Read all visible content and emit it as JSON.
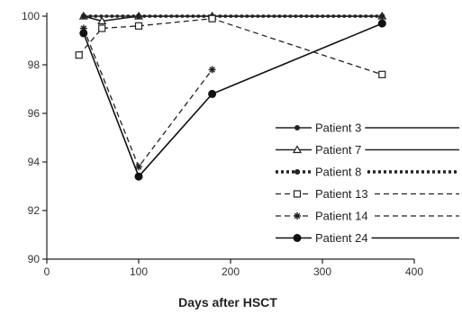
{
  "chart_data": {
    "type": "line",
    "title": "",
    "xlabel": "Days after HSCT",
    "ylabel": "",
    "xlim": [
      0,
      400
    ],
    "ylim": [
      90,
      100
    ],
    "x_ticks": [
      "0",
      "100",
      "200",
      "300",
      "400"
    ],
    "y_ticks": [
      "90",
      "92",
      "94",
      "96",
      "98",
      "100"
    ],
    "grid": false,
    "legend_position": "right",
    "series": [
      {
        "name": "Patient 3",
        "line": "solid-thin",
        "marker": "filled-circle-small",
        "color": "#222222",
        "x": [
          40,
          100,
          365
        ],
        "y": [
          100,
          100,
          100
        ]
      },
      {
        "name": "Patient 7",
        "line": "solid-thin",
        "marker": "open-triangle",
        "color": "#222222",
        "x": [
          40,
          60,
          100,
          180,
          365
        ],
        "y": [
          100,
          99.8,
          100,
          100,
          100
        ]
      },
      {
        "name": "Patient 8",
        "line": "dotted-thick",
        "marker": "filled-circle-small",
        "color": "#222222",
        "x": [
          40,
          100,
          180,
          365
        ],
        "y": [
          100,
          100,
          100,
          100
        ]
      },
      {
        "name": "Patient 13",
        "line": "dashed",
        "marker": "open-square",
        "color": "#222222",
        "x": [
          35,
          60,
          100,
          180,
          365
        ],
        "y": [
          98.4,
          99.5,
          99.6,
          99.9,
          97.6
        ]
      },
      {
        "name": "Patient 14",
        "line": "dashed",
        "marker": "asterisk",
        "color": "#222222",
        "x": [
          40,
          100,
          180
        ],
        "y": [
          99.5,
          93.8,
          97.8
        ]
      },
      {
        "name": "Patient 24",
        "line": "solid",
        "marker": "filled-circle",
        "color": "#111111",
        "x": [
          40,
          100,
          180,
          365
        ],
        "y": [
          99.3,
          93.4,
          96.8,
          99.7
        ]
      }
    ]
  }
}
